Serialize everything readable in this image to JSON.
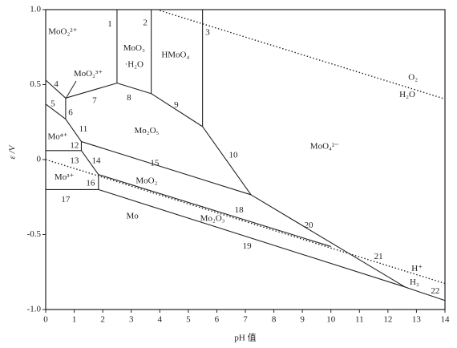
{
  "chart_data": {
    "type": "pourbaix",
    "xlabel": "pH 值",
    "ylabel": "ε /V",
    "xlim": [
      0,
      14
    ],
    "ylim": [
      -1,
      1
    ],
    "xticks": [
      0,
      1,
      2,
      3,
      4,
      5,
      6,
      7,
      8,
      9,
      10,
      11,
      12,
      13,
      14
    ],
    "yticks": [
      {
        "value": -1,
        "label": "-1.0"
      },
      -0.5,
      0,
      0.5,
      {
        "value": 1,
        "label": "1.0"
      }
    ],
    "color": "#222222",
    "lines": [
      {
        "x": [
          2.5,
          2.5
        ],
        "y": [
          1,
          0.51
        ],
        "style": "solid"
      },
      {
        "x": [
          3.7,
          3.7
        ],
        "y": [
          1,
          0.44
        ],
        "style": "solid"
      },
      {
        "x": [
          5.5,
          5.5
        ],
        "y": [
          1,
          0.22
        ],
        "style": "solid"
      },
      {
        "x": [
          0,
          0.7
        ],
        "y": [
          0.53,
          0.41
        ],
        "style": "solid"
      },
      {
        "x": [
          0,
          0.7
        ],
        "y": [
          0.37,
          0.27
        ],
        "style": "solid"
      },
      {
        "x": [
          0.7,
          0.7
        ],
        "y": [
          0.41,
          0.27
        ],
        "style": "solid"
      },
      {
        "x": [
          0.7,
          2.5
        ],
        "y": [
          0.41,
          0.51
        ],
        "style": "solid"
      },
      {
        "x": [
          2.5,
          3.7
        ],
        "y": [
          0.51,
          0.44
        ],
        "style": "solid"
      },
      {
        "x": [
          3.7,
          5.5
        ],
        "y": [
          0.44,
          0.22
        ],
        "style": "solid"
      },
      {
        "x": [
          5.5,
          7.2
        ],
        "y": [
          0.22,
          -0.235
        ],
        "style": "solid"
      },
      {
        "x": [
          0.7,
          1.25
        ],
        "y": [
          0.27,
          0.12
        ],
        "style": "solid"
      },
      {
        "x": [
          1.25,
          1.25
        ],
        "y": [
          0.12,
          0.06
        ],
        "style": "solid"
      },
      {
        "x": [
          0,
          1.25
        ],
        "y": [
          0.06,
          0.06
        ],
        "style": "solid"
      },
      {
        "x": [
          1.25,
          1.85
        ],
        "y": [
          0.06,
          -0.1
        ],
        "style": "solid"
      },
      {
        "x": [
          1.25,
          7.2
        ],
        "y": [
          0.12,
          -0.235
        ],
        "style": "solid"
      },
      {
        "x": [
          1.85,
          1.85
        ],
        "y": [
          -0.1,
          -0.2
        ],
        "style": "solid"
      },
      {
        "x": [
          0,
          1.85
        ],
        "y": [
          -0.2,
          -0.2
        ],
        "style": "solid"
      },
      {
        "x": [
          1.85,
          10
        ],
        "y": [
          -0.1,
          -0.58
        ],
        "style": "solid"
      },
      {
        "x": [
          1.85,
          12.6
        ],
        "y": [
          -0.2,
          -0.85
        ],
        "style": "solid"
      },
      {
        "x": [
          7.2,
          12.6
        ],
        "y": [
          -0.235,
          -0.85
        ],
        "style": "solid"
      },
      {
        "x": [
          12.6,
          14
        ],
        "y": [
          -0.85,
          -0.94
        ],
        "style": "solid"
      },
      {
        "x": [
          4,
          14
        ],
        "y": [
          0.994,
          0.404
        ],
        "style": "dotted"
      },
      {
        "x": [
          0,
          14
        ],
        "y": [
          0,
          -0.826
        ],
        "style": "dotted"
      }
    ],
    "annotations": [
      {
        "text": "MoO₂²⁺",
        "x": 0.6,
        "y": 0.85
      },
      {
        "text": "MoO₃",
        "x": 3.1,
        "y": 0.74
      },
      {
        "text": "·H₂O",
        "x": 3.1,
        "y": 0.63
      },
      {
        "text": "HMoO₄",
        "x": 4.55,
        "y": 0.695
      },
      {
        "text": "MoO₂³⁺",
        "x": 1.49,
        "y": 0.57
      },
      {
        "text": "Mo₂O₅",
        "x": 3.54,
        "y": 0.19
      },
      {
        "text": "MoO₄²⁻",
        "x": 9.78,
        "y": 0.085
      },
      {
        "text": "Mo⁴⁺",
        "x": 0.42,
        "y": 0.15
      },
      {
        "text": "Mo³⁺",
        "x": 0.65,
        "y": -0.12
      },
      {
        "text": "MoO₂",
        "x": 3.54,
        "y": -0.145
      },
      {
        "text": "Mo",
        "x": 3.04,
        "y": -0.38
      },
      {
        "text": "Mo₂O₃",
        "x": 5.85,
        "y": -0.395
      },
      {
        "text": "O₂",
        "x": 12.88,
        "y": 0.545
      },
      {
        "text": "H₂O",
        "x": 12.68,
        "y": 0.43
      },
      {
        "text": "H⁺",
        "x": 13.02,
        "y": -0.73
      },
      {
        "text": "H₂",
        "x": 12.93,
        "y": -0.82
      },
      {
        "text": "1",
        "x": 2.25,
        "y": 0.9
      },
      {
        "text": "2",
        "x": 3.49,
        "y": 0.91
      },
      {
        "text": "3",
        "x": 5.68,
        "y": 0.845
      },
      {
        "text": "4",
        "x": 0.37,
        "y": 0.5
      },
      {
        "text": "5",
        "x": 0.25,
        "y": 0.37
      },
      {
        "text": "6",
        "x": 0.87,
        "y": 0.31
      },
      {
        "text": "7",
        "x": 1.71,
        "y": 0.39
      },
      {
        "text": "8",
        "x": 2.92,
        "y": 0.41
      },
      {
        "text": "9",
        "x": 4.58,
        "y": 0.36
      },
      {
        "text": "10",
        "x": 6.58,
        "y": 0.027
      },
      {
        "text": "11",
        "x": 1.32,
        "y": 0.2
      },
      {
        "text": "12",
        "x": 1.01,
        "y": 0.09
      },
      {
        "text": "13",
        "x": 1.01,
        "y": -0.01
      },
      {
        "text": "14",
        "x": 1.77,
        "y": -0.01
      },
      {
        "text": "15",
        "x": 3.82,
        "y": -0.027
      },
      {
        "text": "16",
        "x": 1.57,
        "y": -0.16
      },
      {
        "text": "17",
        "x": 0.7,
        "y": -0.27
      },
      {
        "text": "18",
        "x": 6.78,
        "y": -0.34
      },
      {
        "text": "19",
        "x": 7.06,
        "y": -0.58
      },
      {
        "text": "20",
        "x": 9.22,
        "y": -0.44
      },
      {
        "text": "21",
        "x": 11.67,
        "y": -0.65
      },
      {
        "text": "22",
        "x": 13.66,
        "y": -0.88
      }
    ]
  }
}
